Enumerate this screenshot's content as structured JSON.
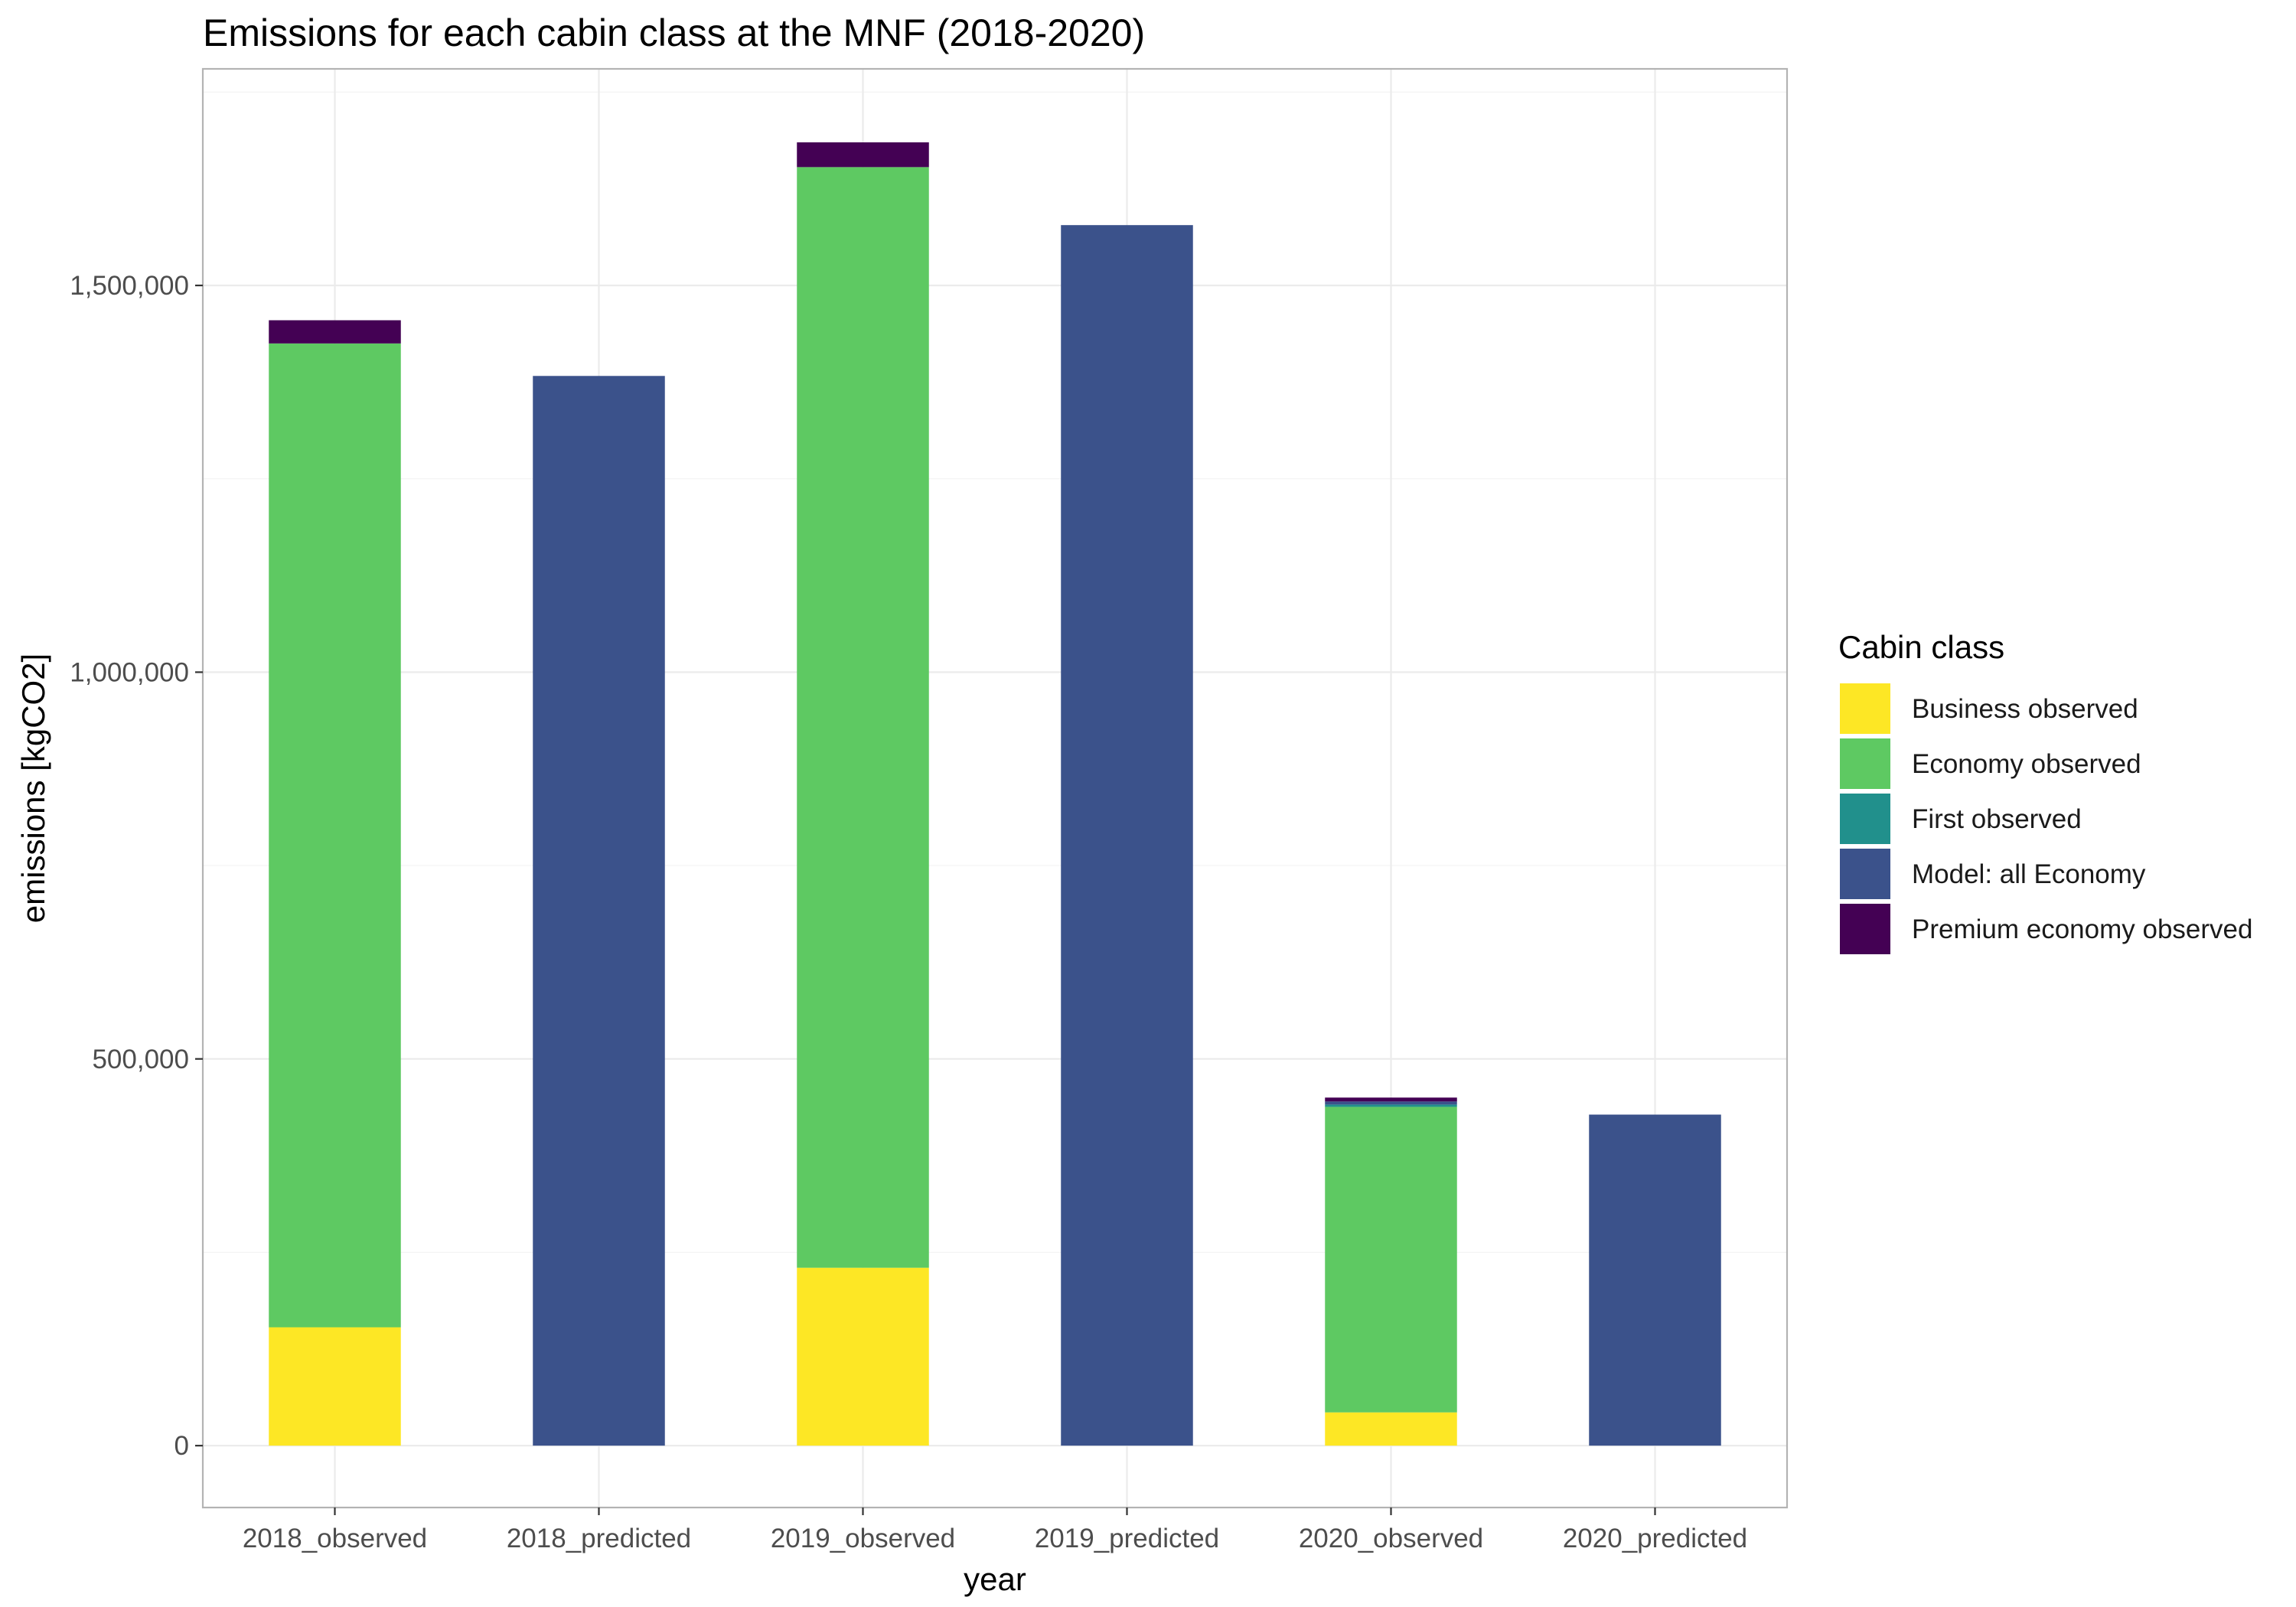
{
  "chart_data": {
    "type": "bar",
    "stacked": true,
    "title": "Emissions for each cabin class at the MNF (2018-2020)",
    "xlabel": "year",
    "ylabel": "emissions [kgCO2]",
    "categories": [
      "2018_observed",
      "2018_predicted",
      "2019_observed",
      "2019_predicted",
      "2020_observed",
      "2020_predicted"
    ],
    "ylim": [
      -80000,
      1780000
    ],
    "y_ticks": [
      0,
      500000,
      1000000,
      1500000
    ],
    "y_tick_labels": [
      "0",
      "500,000",
      "1,000,000",
      "1,500,000"
    ],
    "grid": true,
    "legend": {
      "title": "Cabin class",
      "placement": "right"
    },
    "series": [
      {
        "name": "Business observed",
        "color": "#FDE725",
        "values": [
          153000,
          0,
          230000,
          0,
          43000,
          0
        ]
      },
      {
        "name": "Economy observed",
        "color": "#5EC962",
        "values": [
          1272000,
          0,
          1423000,
          0,
          395000,
          0
        ]
      },
      {
        "name": "First observed",
        "color": "#21908C",
        "values": [
          0,
          0,
          0,
          0,
          3000,
          0
        ]
      },
      {
        "name": "Model: all Economy",
        "color": "#3B528B",
        "values": [
          0,
          1383000,
          0,
          1578000,
          4000,
          428000
        ]
      },
      {
        "name": "Premium economy observed",
        "color": "#440154",
        "values": [
          30000,
          0,
          32000,
          0,
          5000,
          0
        ]
      }
    ]
  }
}
